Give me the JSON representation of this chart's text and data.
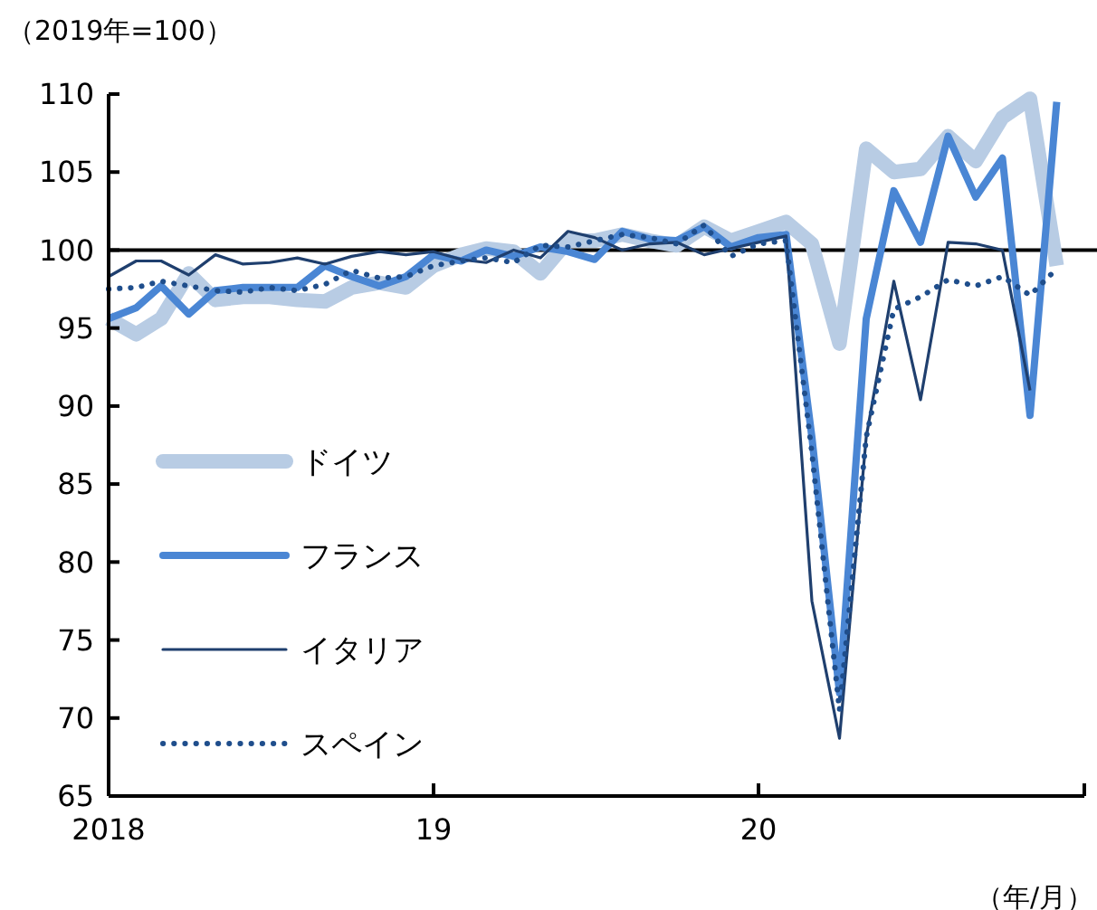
{
  "chart_data": {
    "type": "line",
    "ylabel": "（2019年=100）",
    "xlabel": "（年/月）",
    "x": [
      "2018-01",
      "2018-02",
      "2018-03",
      "2018-04",
      "2018-05",
      "2018-06",
      "2018-07",
      "2018-08",
      "2018-09",
      "2018-10",
      "2018-11",
      "2018-12",
      "2019-01",
      "2019-02",
      "2019-03",
      "2019-04",
      "2019-05",
      "2019-06",
      "2019-07",
      "2019-08",
      "2019-09",
      "2019-10",
      "2019-11",
      "2019-12",
      "2020-01",
      "2020-02",
      "2020-03",
      "2020-04",
      "2020-05",
      "2020-06",
      "2020-07",
      "2020-08",
      "2020-09",
      "2020-10",
      "2020-11",
      "2020-12"
    ],
    "xlim": [
      "2018-01",
      "2021-01"
    ],
    "xticks": [
      {
        "value": "2018-01",
        "label": "2018"
      },
      {
        "value": "2019-01",
        "label": "19"
      },
      {
        "value": "2020-01",
        "label": "20"
      },
      {
        "value": "2021-01",
        "label": null
      }
    ],
    "ylim": [
      65,
      110
    ],
    "yticks": [
      65,
      70,
      75,
      80,
      85,
      90,
      95,
      100,
      105,
      110
    ],
    "grid": false,
    "legend": "bottom left",
    "marker": "none",
    "ref_lines": [
      {
        "axis": "y",
        "value": 100,
        "color": "#000000",
        "line_style": "solid"
      }
    ],
    "series": [
      {
        "name": "ドイツ",
        "color": "#b8cce4",
        "line_style": "solid",
        "values": [
          95.6,
          94.6,
          95.6,
          98.5,
          96.8,
          97.0,
          97.0,
          96.8,
          96.7,
          97.6,
          97.9,
          97.6,
          99.0,
          99.7,
          100.1,
          99.9,
          98.5,
          100.6,
          100.6,
          101.0,
          100.6,
          100.3,
          101.5,
          100.6,
          101.2,
          101.8,
          100.4,
          94.0,
          106.5,
          105.0,
          105.2,
          107.3,
          105.7,
          108.5,
          109.7,
          99.0
        ]
      },
      {
        "name": "フランス",
        "color": "#4a86d4",
        "line_style": "solid",
        "values": [
          95.6,
          96.3,
          97.7,
          95.9,
          97.4,
          97.6,
          97.6,
          97.6,
          99.0,
          98.3,
          97.7,
          98.3,
          99.7,
          99.3,
          100.0,
          99.6,
          100.2,
          99.9,
          99.4,
          101.2,
          100.7,
          100.6,
          101.5,
          100.2,
          100.8,
          101.0,
          88.0,
          71.6,
          95.6,
          103.8,
          100.5,
          107.3,
          103.4,
          105.9,
          89.4,
          109.5
        ]
      },
      {
        "name": "イタリア",
        "color": "#1f3f6e",
        "line_style": "solid",
        "values": [
          98.3,
          99.3,
          99.3,
          98.4,
          99.7,
          99.1,
          99.2,
          99.5,
          99.1,
          99.6,
          99.9,
          99.7,
          99.9,
          99.4,
          99.2,
          100.0,
          99.5,
          101.2,
          100.8,
          100.0,
          100.4,
          100.5,
          99.7,
          100.1,
          100.5,
          100.9,
          77.5,
          68.7,
          88.0,
          98.0,
          90.4,
          100.5,
          100.4,
          100.0,
          91.0,
          null
        ]
      },
      {
        "name": "スペイン",
        "color": "#1f4e8c",
        "line_style": "dotted",
        "values": [
          97.5,
          97.6,
          98.0,
          97.7,
          97.4,
          97.3,
          97.6,
          97.4,
          97.8,
          98.7,
          98.2,
          98.3,
          99.0,
          99.3,
          99.5,
          99.2,
          100.3,
          100.2,
          100.6,
          101.0,
          100.8,
          100.4,
          101.6,
          99.6,
          100.4,
          100.6,
          87.0,
          70.5,
          88.0,
          96.2,
          97.0,
          98.1,
          97.7,
          98.3,
          97.1,
          98.8
        ]
      }
    ]
  }
}
